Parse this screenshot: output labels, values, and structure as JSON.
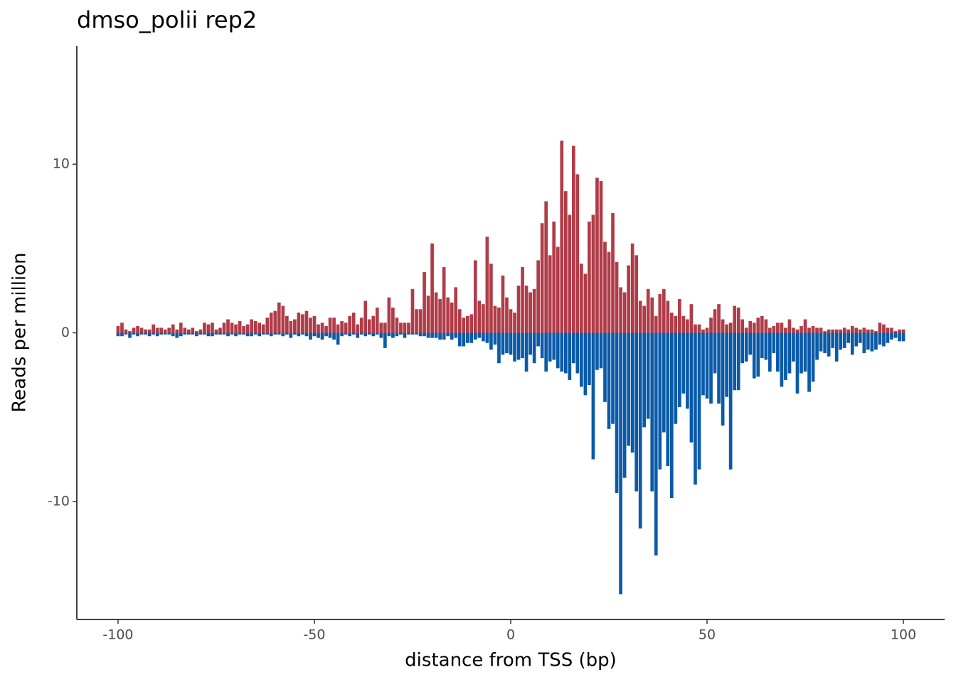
{
  "chart_data": {
    "type": "bar",
    "title": "dmso_polii rep2",
    "x_label": "distance from TSS (bp)",
    "y_label": "Reads per million",
    "x": [
      -100,
      -99,
      -98,
      -97,
      -96,
      -95,
      -94,
      -93,
      -92,
      -91,
      -90,
      -89,
      -88,
      -87,
      -86,
      -85,
      -84,
      -83,
      -82,
      -81,
      -80,
      -79,
      -78,
      -77,
      -76,
      -75,
      -74,
      -73,
      -72,
      -71,
      -70,
      -69,
      -68,
      -67,
      -66,
      -65,
      -64,
      -63,
      -62,
      -61,
      -60,
      -59,
      -58,
      -57,
      -56,
      -55,
      -54,
      -53,
      -52,
      -51,
      -50,
      -49,
      -48,
      -47,
      -46,
      -45,
      -44,
      -43,
      -42,
      -41,
      -40,
      -39,
      -38,
      -37,
      -36,
      -35,
      -34,
      -33,
      -32,
      -31,
      -30,
      -29,
      -28,
      -27,
      -26,
      -25,
      -24,
      -23,
      -22,
      -21,
      -20,
      -19,
      -18,
      -17,
      -16,
      -15,
      -14,
      -13,
      -12,
      -11,
      -10,
      -9,
      -8,
      -7,
      -6,
      -5,
      -4,
      -3,
      -2,
      -1,
      0,
      1,
      2,
      3,
      4,
      5,
      6,
      7,
      8,
      9,
      10,
      11,
      12,
      13,
      14,
      15,
      16,
      17,
      18,
      19,
      20,
      21,
      22,
      23,
      24,
      25,
      26,
      27,
      28,
      29,
      30,
      31,
      32,
      33,
      34,
      35,
      36,
      37,
      38,
      39,
      40,
      41,
      42,
      43,
      44,
      45,
      46,
      47,
      48,
      49,
      50,
      51,
      52,
      53,
      54,
      55,
      56,
      57,
      58,
      59,
      60,
      61,
      62,
      63,
      64,
      65,
      66,
      67,
      68,
      69,
      70,
      71,
      72,
      73,
      74,
      75,
      76,
      77,
      78,
      79,
      80,
      81,
      82,
      83,
      84,
      85,
      86,
      87,
      88,
      89,
      90,
      91,
      92,
      93,
      94,
      95,
      96,
      97,
      98,
      99,
      100
    ],
    "series": [
      {
        "color": "#b03c48",
        "values": [
          0.4,
          0.6,
          0.2,
          0.1,
          0.3,
          0.4,
          0.3,
          0.2,
          0.2,
          0.5,
          0.3,
          0.3,
          0.2,
          0.3,
          0.5,
          0.2,
          0.6,
          0.3,
          0.2,
          0.3,
          0.1,
          0.2,
          0.6,
          0.5,
          0.6,
          0.2,
          0.3,
          0.6,
          0.8,
          0.6,
          0.5,
          0.7,
          0.4,
          0.5,
          0.8,
          0.7,
          0.6,
          0.5,
          0.9,
          1.2,
          1.3,
          1.8,
          1.6,
          1.0,
          0.7,
          0.8,
          1.2,
          1.1,
          1.3,
          0.9,
          1.0,
          0.5,
          0.6,
          0.4,
          0.9,
          0.9,
          0.5,
          0.7,
          0.6,
          1.0,
          1.2,
          0.5,
          0.9,
          1.9,
          0.8,
          1.0,
          1.5,
          0.6,
          0.6,
          2.1,
          1.5,
          0.9,
          0.6,
          0.6,
          0.6,
          2.6,
          1.4,
          1.4,
          3.6,
          2.2,
          5.3,
          2.4,
          2.0,
          3.9,
          2.1,
          1.8,
          2.7,
          1.4,
          0.9,
          1.0,
          1.1,
          4.3,
          1.9,
          1.7,
          5.7,
          4.1,
          1.6,
          1.5,
          3.4,
          2.1,
          1.4,
          1.2,
          2.8,
          3.9,
          2.8,
          2.4,
          2.6,
          4.3,
          6.5,
          7.8,
          4.6,
          6.6,
          5.1,
          11.4,
          8.4,
          7.0,
          11.1,
          9.4,
          4.1,
          3.5,
          6.6,
          7.0,
          9.2,
          9.0,
          5.4,
          4.8,
          7.1,
          4.2,
          2.7,
          2.4,
          4.0,
          5.3,
          4.6,
          1.9,
          1.6,
          2.6,
          2.1,
          1.0,
          2.3,
          2.6,
          1.9,
          1.2,
          1.0,
          2.0,
          1.0,
          0.8,
          1.7,
          0.5,
          0.5,
          0.2,
          0.3,
          0.9,
          1.4,
          1.7,
          0.8,
          0.5,
          0.6,
          1.6,
          1.5,
          0.8,
          0.3,
          0.7,
          0.6,
          0.9,
          1.0,
          0.8,
          0.3,
          0.4,
          0.6,
          0.6,
          0.3,
          0.8,
          0.3,
          0.2,
          0.4,
          0.8,
          0.3,
          0.4,
          0.3,
          0.3,
          0.1,
          0.2,
          0.2,
          0.2,
          0.2,
          0.3,
          0.2,
          0.4,
          0.3,
          0.2,
          0.3,
          0.2,
          0.2,
          0.1,
          0.6,
          0.5,
          0.3,
          0.3,
          0.1,
          0.2,
          0.2
        ]
      },
      {
        "color": "#0a5aa8",
        "values": [
          -0.2,
          -0.2,
          -0.1,
          -0.3,
          -0.1,
          -0.2,
          -0.1,
          -0.1,
          -0.2,
          -0.1,
          -0.2,
          -0.1,
          -0.1,
          -0.1,
          -0.2,
          -0.3,
          -0.2,
          -0.1,
          -0.1,
          -0.1,
          -0.2,
          -0.1,
          -0.1,
          -0.2,
          -0.2,
          -0.1,
          -0.1,
          -0.1,
          -0.2,
          -0.1,
          -0.2,
          -0.1,
          -0.1,
          -0.2,
          -0.2,
          -0.1,
          -0.2,
          -0.1,
          -0.1,
          -0.2,
          -0.1,
          -0.1,
          -0.2,
          -0.1,
          -0.3,
          -0.1,
          -0.2,
          -0.1,
          -0.2,
          -0.4,
          -0.2,
          -0.3,
          -0.4,
          -0.2,
          -0.3,
          -0.4,
          -0.7,
          -0.2,
          -0.1,
          -0.2,
          -0.1,
          -0.3,
          -0.1,
          -0.2,
          -0.1,
          -0.2,
          -0.1,
          -0.3,
          -0.9,
          -0.2,
          -0.3,
          -0.2,
          -0.1,
          -0.3,
          -0.1,
          -0.1,
          -0.1,
          -0.2,
          -0.2,
          -0.3,
          -0.3,
          -0.3,
          -0.4,
          -0.4,
          -0.2,
          -0.4,
          -0.3,
          -0.8,
          -0.8,
          -0.6,
          -0.6,
          -0.4,
          -0.3,
          -0.5,
          -0.6,
          -1.0,
          -0.7,
          -1.8,
          -1.3,
          -1.2,
          -1.3,
          -1.7,
          -1.6,
          -1.5,
          -2.3,
          -1.3,
          -1.8,
          -0.8,
          -1.5,
          -2.3,
          -1.7,
          -1.6,
          -2.1,
          -2.3,
          -2.4,
          -2.8,
          -1.8,
          -2.4,
          -3.2,
          -3.7,
          -3.1,
          -7.5,
          -2.2,
          -2.1,
          -4.1,
          -5.7,
          -5.4,
          -9.5,
          -15.5,
          -8.6,
          -6.7,
          -7.1,
          -9.4,
          -11.6,
          -5.6,
          -5.1,
          -9.4,
          -13.2,
          -8.1,
          -5.9,
          -7.9,
          -9.8,
          -5.4,
          -4.4,
          -3.6,
          -4.5,
          -6.5,
          -9.0,
          -8.1,
          -3.7,
          -3.9,
          -4.2,
          -2.4,
          -4.2,
          -5.5,
          -3.8,
          -8.1,
          -3.4,
          -3.4,
          -1.8,
          -1.7,
          -1.3,
          -2.7,
          -2.6,
          -1.5,
          -1.6,
          -2.3,
          -1.2,
          -2.3,
          -3.2,
          -2.8,
          -2.4,
          -1.7,
          -3.6,
          -2.4,
          -2.3,
          -3.5,
          -2.9,
          -1.6,
          -1.1,
          -1.2,
          -1.4,
          -0.9,
          -1.7,
          -1.0,
          -0.9,
          -0.6,
          -1.3,
          -0.8,
          -0.6,
          -1.2,
          -1.0,
          -1.1,
          -1.0,
          -0.7,
          -0.8,
          -0.6,
          -0.4,
          -0.3,
          -0.5,
          -0.5
        ]
      }
    ],
    "xlim": [
      -110.5,
      110.5
    ],
    "xticks": [
      -100,
      -50,
      0,
      50,
      100
    ],
    "ylim": [
      -17,
      17
    ],
    "yticks": [
      -10,
      0,
      10
    ],
    "grid": false
  }
}
